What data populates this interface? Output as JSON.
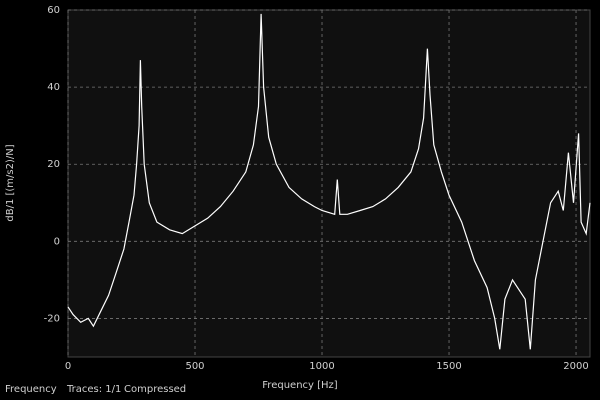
{
  "chart_data": {
    "type": "line",
    "xlabel": "Frequency [Hz]",
    "ylabel": "dB/1 [(m/s2)/N]",
    "x": [
      0,
      20,
      50,
      80,
      100,
      130,
      160,
      190,
      220,
      240,
      260,
      270,
      280,
      285,
      290,
      300,
      320,
      350,
      400,
      450,
      500,
      550,
      600,
      650,
      700,
      730,
      750,
      760,
      770,
      790,
      820,
      870,
      920,
      970,
      1000,
      1050,
      1060,
      1070,
      1100,
      1150,
      1200,
      1250,
      1300,
      1350,
      1380,
      1400,
      1415,
      1425,
      1440,
      1470,
      1500,
      1550,
      1600,
      1650,
      1680,
      1700,
      1720,
      1750,
      1800,
      1820,
      1840,
      1870,
      1900,
      1930,
      1950,
      1970,
      1990,
      2010,
      2020,
      2040,
      2055
    ],
    "values": [
      -17,
      -19,
      -21,
      -20,
      -22,
      -18,
      -14,
      -8,
      -2,
      5,
      12,
      20,
      30,
      47,
      35,
      20,
      10,
      5,
      3,
      2,
      4,
      6,
      9,
      13,
      18,
      25,
      35,
      59,
      40,
      27,
      20,
      14,
      11,
      9,
      8,
      7,
      16,
      7,
      7,
      8,
      9,
      11,
      14,
      18,
      24,
      32,
      50,
      38,
      25,
      18,
      12,
      5,
      -5,
      -12,
      -20,
      -28,
      -15,
      -10,
      -15,
      -28,
      -10,
      0,
      10,
      13,
      8,
      23,
      10,
      28,
      5,
      2,
      10
    ],
    "color": "#ffffff",
    "xlim": [
      0,
      2055
    ],
    "ylim": [
      -30,
      60
    ],
    "xticks": [
      0,
      500,
      1000,
      1500,
      2000
    ],
    "yticks": [
      -20,
      0,
      20,
      40,
      60
    ],
    "grid": true
  },
  "status_bar": {
    "label": "Frequency",
    "traces": "Traces: 1/1",
    "mode": "Compressed"
  }
}
